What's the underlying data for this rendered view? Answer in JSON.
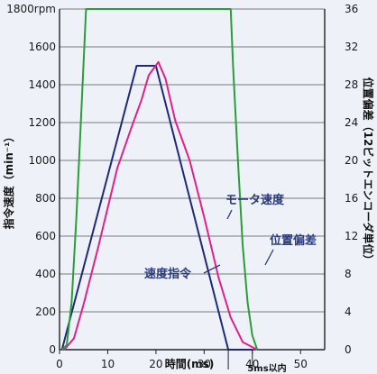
{
  "chart_data": {
    "type": "line",
    "xlabel": "時間(ms)",
    "ylabel_left": "指令速度（min⁻¹）",
    "ylabel_right": "位置偏差（12ビットエンコーダ単位）",
    "xlim": [
      0,
      55
    ],
    "ylim_left": [
      0,
      1800
    ],
    "ylim_right": [
      0,
      36
    ],
    "x_ticks": [
      0,
      10,
      20,
      30,
      40,
      50
    ],
    "x_tick_labels": [
      "0",
      "10",
      "20",
      "30",
      "40",
      "50"
    ],
    "y_left_ticks": [
      0,
      200,
      400,
      600,
      800,
      1000,
      1200,
      1400,
      1600,
      1800
    ],
    "y_left_tick_labels": [
      "0",
      "200",
      "400",
      "600",
      "800",
      "1000",
      "1200",
      "1400",
      "1600",
      "1800rpm"
    ],
    "y_right_ticks": [
      0,
      4,
      8,
      12,
      16,
      20,
      24,
      28,
      32,
      36
    ],
    "y_right_tick_labels": [
      "0",
      "4",
      "8",
      "12",
      "16",
      "20",
      "24",
      "28",
      "32",
      "36"
    ],
    "grid": true,
    "series": [
      {
        "name": "速度指令",
        "axis": "left",
        "color": "#1e2a78",
        "points": [
          [
            0.5,
            0
          ],
          [
            16,
            1500
          ],
          [
            20,
            1500
          ],
          [
            35,
            0
          ],
          [
            40,
            0
          ]
        ]
      },
      {
        "name": "モータ速度",
        "axis": "left",
        "color": "#e0218a",
        "points": [
          [
            1,
            0
          ],
          [
            3,
            60
          ],
          [
            5,
            240
          ],
          [
            8,
            540
          ],
          [
            12,
            960
          ],
          [
            15,
            1180
          ],
          [
            17,
            1320
          ],
          [
            18.5,
            1450
          ],
          [
            20.5,
            1520
          ],
          [
            22,
            1430
          ],
          [
            24,
            1210
          ],
          [
            27,
            1000
          ],
          [
            30,
            700
          ],
          [
            33,
            380
          ],
          [
            35.5,
            170
          ],
          [
            38,
            40
          ],
          [
            41,
            0
          ]
        ]
      },
      {
        "name": "位置偏差",
        "axis": "right",
        "color": "#2a9d3a",
        "points": [
          [
            0.5,
            0
          ],
          [
            1.5,
            0.5
          ],
          [
            2.5,
            5
          ],
          [
            3.5,
            14
          ],
          [
            4.5,
            25
          ],
          [
            5.5,
            36
          ],
          [
            35.5,
            36
          ],
          [
            36,
            30
          ],
          [
            37,
            20
          ],
          [
            38,
            11
          ],
          [
            39,
            5
          ],
          [
            40,
            1.5
          ],
          [
            41,
            0
          ]
        ]
      }
    ],
    "annotations": {
      "bottom_note": "5ms以内"
    }
  }
}
